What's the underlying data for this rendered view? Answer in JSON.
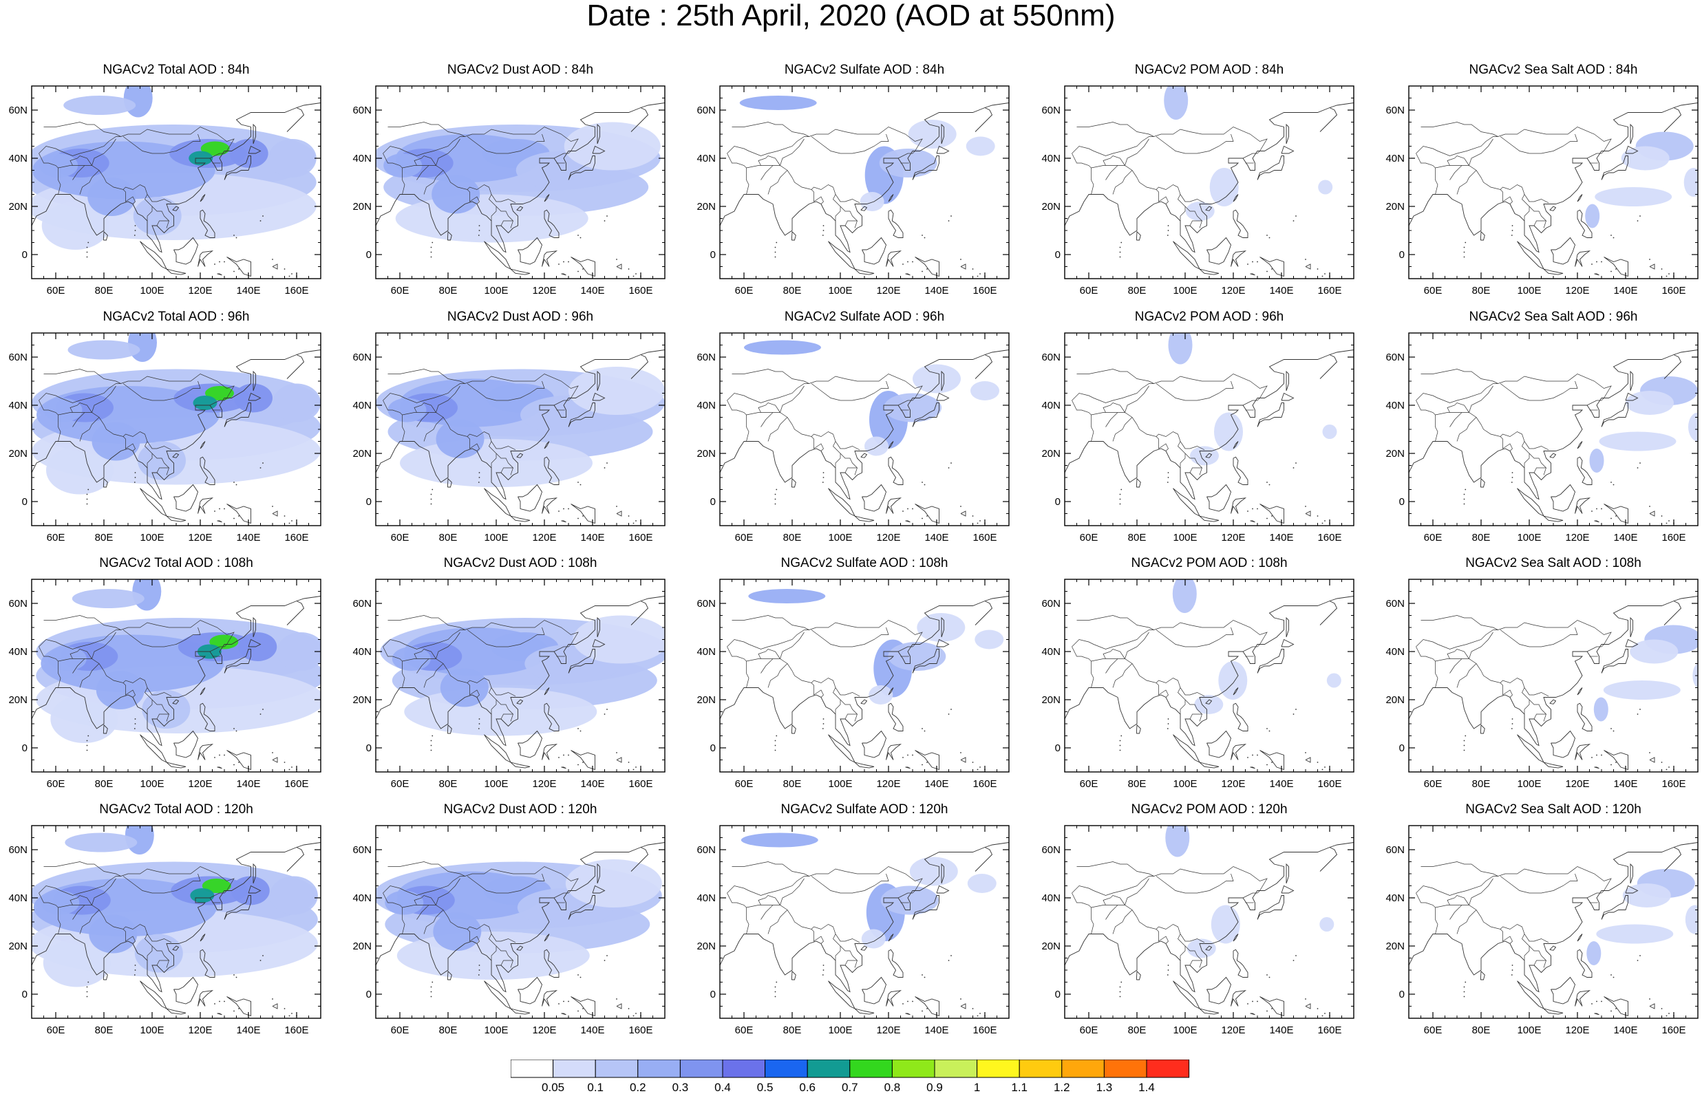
{
  "title": "Date : 25th April, 2020 (AOD at 550nm)",
  "lat_labels": [
    "60N",
    "40N",
    "20N",
    "0"
  ],
  "lon_labels": [
    "60E",
    "80E",
    "100E",
    "120E",
    "140E",
    "160E"
  ],
  "panels": [
    [
      "NGACv2 Total AOD : 84h",
      "NGACv2 Dust AOD : 84h",
      "NGACv2 Sulfate AOD : 84h",
      "NGACv2 POM AOD : 84h",
      "NGACv2 Sea Salt AOD : 84h"
    ],
    [
      "NGACv2 Total AOD : 96h",
      "NGACv2 Dust AOD : 96h",
      "NGACv2 Sulfate AOD : 96h",
      "NGACv2 POM AOD : 96h",
      "NGACv2 Sea Salt AOD : 96h"
    ],
    [
      "NGACv2 Total AOD : 108h",
      "NGACv2 Dust AOD : 108h",
      "NGACv2 Sulfate AOD : 108h",
      "NGACv2 POM AOD : 108h",
      "NGACv2 Sea Salt AOD : 108h"
    ],
    [
      "NGACv2 Total AOD : 120h",
      "NGACv2 Dust AOD : 120h",
      "NGACv2 Sulfate AOD : 120h",
      "NGACv2 POM AOD : 120h",
      "NGACv2 Sea Salt  AOD : 120h"
    ]
  ],
  "colorbar": {
    "colors": [
      "#ffffff",
      "#d4dcfa",
      "#b6c5f7",
      "#98aef4",
      "#7f94ef",
      "#6b72ea",
      "#1a66f0",
      "#129b93",
      "#33d71e",
      "#8fe81a",
      "#c9f05a",
      "#fff71e",
      "#ffcb0f",
      "#ffa70b",
      "#ff7309",
      "#ff2d1d"
    ],
    "labels": [
      "0.05",
      "0.1",
      "0.2",
      "0.3",
      "0.4",
      "0.5",
      "0.6",
      "0.7",
      "0.8",
      "0.9",
      "1",
      "1.1",
      "1.2",
      "1.3",
      "1.4"
    ]
  },
  "colors": {
    "land_outline": "#333333",
    "frame": "#000000"
  }
}
